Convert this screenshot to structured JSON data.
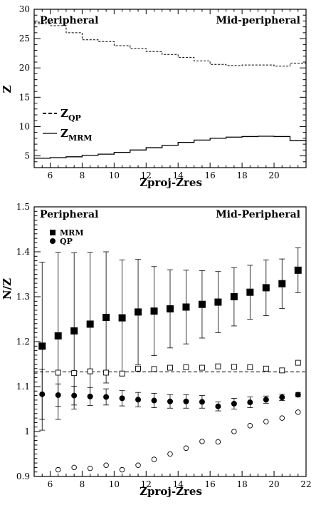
{
  "chart_data": [
    {
      "type": "line",
      "xlabel": "Zproj-Zres",
      "ylabel": "Z",
      "xlim": [
        5,
        22
      ],
      "ylim": [
        3,
        30
      ],
      "xticks": [
        6,
        8,
        10,
        12,
        14,
        16,
        18,
        20
      ],
      "yticks": [
        5,
        10,
        15,
        20,
        25,
        30
      ],
      "annotations": [
        "Peripheral",
        "Mid-peripheral"
      ],
      "reference_line": {
        "y": 27.8,
        "style": "dashed"
      },
      "legend": {
        "placement": "left-middle",
        "entries": [
          {
            "main": "Z",
            "sub": "QP",
            "style": "dashed"
          },
          {
            "main": "Z",
            "sub": "MRM",
            "style": "solid"
          }
        ]
      },
      "series": [
        {
          "name": "ZQP",
          "style": "dashed-step",
          "x": [
            5,
            6,
            7,
            8,
            9,
            10,
            11,
            12,
            13,
            14,
            15,
            16,
            17,
            18,
            19,
            20,
            21,
            22
          ],
          "y": [
            27.5,
            27.2,
            26.0,
            24.8,
            24.5,
            23.8,
            23.3,
            22.8,
            22.3,
            21.8,
            21.2,
            20.6,
            20.4,
            20.5,
            20.5,
            20.3,
            20.8,
            20.8
          ]
        },
        {
          "name": "ZMRM",
          "style": "solid-step",
          "x": [
            5,
            6,
            7,
            8,
            9,
            10,
            11,
            12,
            13,
            14,
            15,
            16,
            17,
            18,
            19,
            20,
            21,
            22
          ],
          "y": [
            4.6,
            4.7,
            4.85,
            5.1,
            5.3,
            5.6,
            6.0,
            6.4,
            6.8,
            7.3,
            7.7,
            8.0,
            8.2,
            8.3,
            8.35,
            8.3,
            7.6,
            7.6
          ]
        }
      ]
    },
    {
      "type": "scatter",
      "xlabel": "Zproj-Zres",
      "ylabel": "N/Z",
      "xlim": [
        5,
        22
      ],
      "ylim": [
        0.9,
        1.5
      ],
      "xticks": [
        6,
        8,
        10,
        12,
        14,
        16,
        18,
        20,
        22
      ],
      "yticks": [
        0.9,
        1,
        1.1,
        1.2,
        1.3,
        1.4,
        1.5
      ],
      "yticklabels": [
        "0.9",
        "1",
        "1.1",
        "1.2",
        "1.3",
        "1.4",
        "1.5"
      ],
      "annotations": [
        "Peripheral",
        "Mid-Peripheral"
      ],
      "reference_line": {
        "y": 1.133,
        "style": "dashed"
      },
      "legend": {
        "placement": "top-left",
        "entries": [
          {
            "label": "MRM",
            "marker": "square"
          },
          {
            "label": "QP",
            "marker": "circle"
          }
        ]
      },
      "series": [
        {
          "name": "MRM",
          "marker": "filled-square",
          "x": [
            5.5,
            6.5,
            7.5,
            8.5,
            9.5,
            10.5,
            11.5,
            12.5,
            13.5,
            14.5,
            15.5,
            16.5,
            17.5,
            18.5,
            19.5,
            20.5,
            21.5
          ],
          "y": [
            1.19,
            1.213,
            1.224,
            1.239,
            1.254,
            1.253,
            1.266,
            1.268,
            1.273,
            1.277,
            1.283,
            1.288,
            1.3,
            1.31,
            1.32,
            1.329,
            1.359
          ],
          "err": [
            0.187,
            0.186,
            0.174,
            0.16,
            0.146,
            0.129,
            0.117,
            0.099,
            0.087,
            0.082,
            0.075,
            0.068,
            0.065,
            0.06,
            0.062,
            0.055,
            0.05
          ]
        },
        {
          "name": "QP",
          "marker": "filled-circle",
          "x": [
            5.5,
            6.5,
            7.5,
            8.5,
            9.5,
            10.5,
            11.5,
            12.5,
            13.5,
            14.5,
            15.5,
            16.5,
            17.5,
            18.5,
            19.5,
            20.5,
            21.5
          ],
          "y": [
            1.083,
            1.081,
            1.08,
            1.078,
            1.077,
            1.074,
            1.071,
            1.069,
            1.067,
            1.067,
            1.066,
            1.056,
            1.062,
            1.065,
            1.071,
            1.076,
            1.082
          ],
          "err": [
            0.056,
            0.025,
            0.021,
            0.02,
            0.018,
            0.017,
            0.016,
            0.016,
            0.015,
            0.015,
            0.014,
            0.01,
            0.012,
            0.012,
            0.008,
            0.007,
            0.005
          ]
        },
        {
          "name": "MRM open",
          "marker": "open-square",
          "x": [
            6.5,
            7.5,
            8.5,
            9.5,
            10.5,
            11.5,
            12.5,
            13.5,
            14.5,
            15.5,
            16.5,
            17.5,
            18.5,
            19.5,
            20.5,
            21.5
          ],
          "y": [
            1.131,
            1.13,
            1.134,
            1.131,
            1.129,
            1.14,
            1.139,
            1.142,
            1.143,
            1.142,
            1.145,
            1.144,
            1.143,
            1.14,
            1.136,
            1.153
          ]
        },
        {
          "name": "QP open",
          "marker": "open-circle",
          "x": [
            6.5,
            7.5,
            8.5,
            9.5,
            10.5,
            11.5,
            12.5,
            13.5,
            14.5,
            15.5,
            16.5,
            17.5,
            18.5,
            19.5,
            20.5,
            21.5
          ],
          "y": [
            0.915,
            0.92,
            0.918,
            0.925,
            0.915,
            0.925,
            0.938,
            0.95,
            0.963,
            0.978,
            0.977,
            1.0,
            1.013,
            1.022,
            1.03,
            1.043
          ]
        }
      ]
    }
  ]
}
